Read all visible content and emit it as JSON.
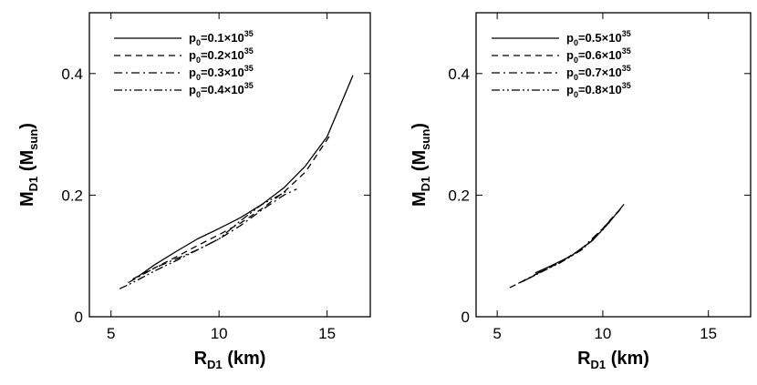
{
  "chart_data": [
    {
      "type": "line",
      "panel": "left",
      "xlabel": {
        "main": "R",
        "sub": "D1",
        "unit": " (km)"
      },
      "ylabel": {
        "main": "M",
        "sub": "D1",
        "unit_open": " (M",
        "unit_sub": "sun",
        "unit_close": ")"
      },
      "xlim": [
        4,
        17
      ],
      "ylim": [
        0,
        0.5
      ],
      "xticks": [
        5,
        10,
        15
      ],
      "yticks": [
        0,
        0.2,
        0.4
      ],
      "xtick_labels": [
        "5",
        "10",
        "15"
      ],
      "ytick_labels": [
        "0",
        "0.2",
        "0.4"
      ],
      "grid": false,
      "legend_placement": "top-left",
      "series": [
        {
          "name": "p0=0.1×1035",
          "legend": {
            "main": "p",
            "sub": "0",
            "eq": "=0.1×10",
            "sup": "35"
          },
          "dash": "solid",
          "x": [
            6.2,
            7.0,
            8.0,
            9.0,
            10.0,
            11.0,
            12.0,
            13.0,
            14.0,
            15.0,
            16.2
          ],
          "y": [
            0.065,
            0.085,
            0.107,
            0.128,
            0.145,
            0.163,
            0.185,
            0.212,
            0.248,
            0.296,
            0.397
          ]
        },
        {
          "name": "p0=0.2×1035",
          "legend": {
            "main": "p",
            "sub": "0",
            "eq": "=0.2×10",
            "sup": "35"
          },
          "dash": "dash",
          "x": [
            6.0,
            7.0,
            8.0,
            9.0,
            10.0,
            11.0,
            12.0,
            13.0,
            14.0,
            15.2
          ],
          "y": [
            0.062,
            0.08,
            0.098,
            0.117,
            0.135,
            0.154,
            0.178,
            0.205,
            0.238,
            0.302
          ]
        },
        {
          "name": "p0=0.3×1035",
          "legend": {
            "main": "p",
            "sub": "0",
            "eq": "=0.3×10",
            "sup": "35"
          },
          "dash": "dashdot",
          "x": [
            5.8,
            7.0,
            8.0,
            9.0,
            10.0,
            11.0,
            12.0,
            13.0,
            13.6
          ],
          "y": [
            0.056,
            0.08,
            0.095,
            0.11,
            0.128,
            0.15,
            0.176,
            0.2,
            0.21
          ]
        },
        {
          "name": "p0=0.4×1035",
          "legend": {
            "main": "p",
            "sub": "0",
            "eq": "=0.4×10",
            "sup": "35"
          },
          "dash": "dashdotdot",
          "x": [
            5.4,
            6.0,
            7.0,
            8.0,
            9.0,
            10.0,
            11.0,
            12.0,
            12.8,
            13.2
          ],
          "y": [
            0.046,
            0.056,
            0.075,
            0.092,
            0.11,
            0.128,
            0.158,
            0.185,
            0.2,
            0.208
          ]
        }
      ]
    },
    {
      "type": "line",
      "panel": "right",
      "xlabel": {
        "main": "R",
        "sub": "D1",
        "unit": " (km)"
      },
      "ylabel": {
        "main": "M",
        "sub": "D1",
        "unit_open": " (M",
        "unit_sub": "sun",
        "unit_close": ")"
      },
      "xlim": [
        4,
        17
      ],
      "ylim": [
        0,
        0.5
      ],
      "xticks": [
        5,
        10,
        15
      ],
      "yticks": [
        0,
        0.2,
        0.4
      ],
      "xtick_labels": [
        "5",
        "10",
        "15"
      ],
      "ytick_labels": [
        "0",
        "0.2",
        "0.4"
      ],
      "grid": false,
      "legend_placement": "top-left",
      "series": [
        {
          "name": "p0=0.5×1035",
          "legend": {
            "main": "p",
            "sub": "0",
            "eq": "=0.5×10",
            "sup": "35"
          },
          "dash": "solid",
          "x": [
            6.8,
            7.5,
            8.5,
            9.5,
            10.3,
            11.0
          ],
          "y": [
            0.072,
            0.083,
            0.1,
            0.125,
            0.155,
            0.185
          ]
        },
        {
          "name": "p0=0.6×1035",
          "legend": {
            "main": "p",
            "sub": "0",
            "eq": "=0.6×10",
            "sup": "35"
          },
          "dash": "dash",
          "x": [
            5.6,
            6.5,
            7.5,
            8.5,
            9.5,
            10.5,
            11.0
          ],
          "y": [
            0.048,
            0.063,
            0.082,
            0.1,
            0.125,
            0.165,
            0.183
          ]
        },
        {
          "name": "p0=0.7×1035",
          "legend": {
            "main": "p",
            "sub": "0",
            "eq": "=0.7×10",
            "sup": "35"
          },
          "dash": "dashdot",
          "x": [
            6.0,
            7.0,
            8.0,
            9.0,
            10.0,
            10.8
          ],
          "y": [
            0.055,
            0.073,
            0.09,
            0.112,
            0.145,
            0.175
          ]
        },
        {
          "name": "p0=0.8×1035",
          "legend": {
            "main": "p",
            "sub": "0",
            "eq": "=0.8×10",
            "sup": "35"
          },
          "dash": "dashdotdot",
          "x": [
            6.2,
            7.0,
            8.0,
            9.0,
            10.0,
            10.6
          ],
          "y": [
            0.058,
            0.072,
            0.089,
            0.11,
            0.143,
            0.168
          ]
        }
      ]
    }
  ]
}
